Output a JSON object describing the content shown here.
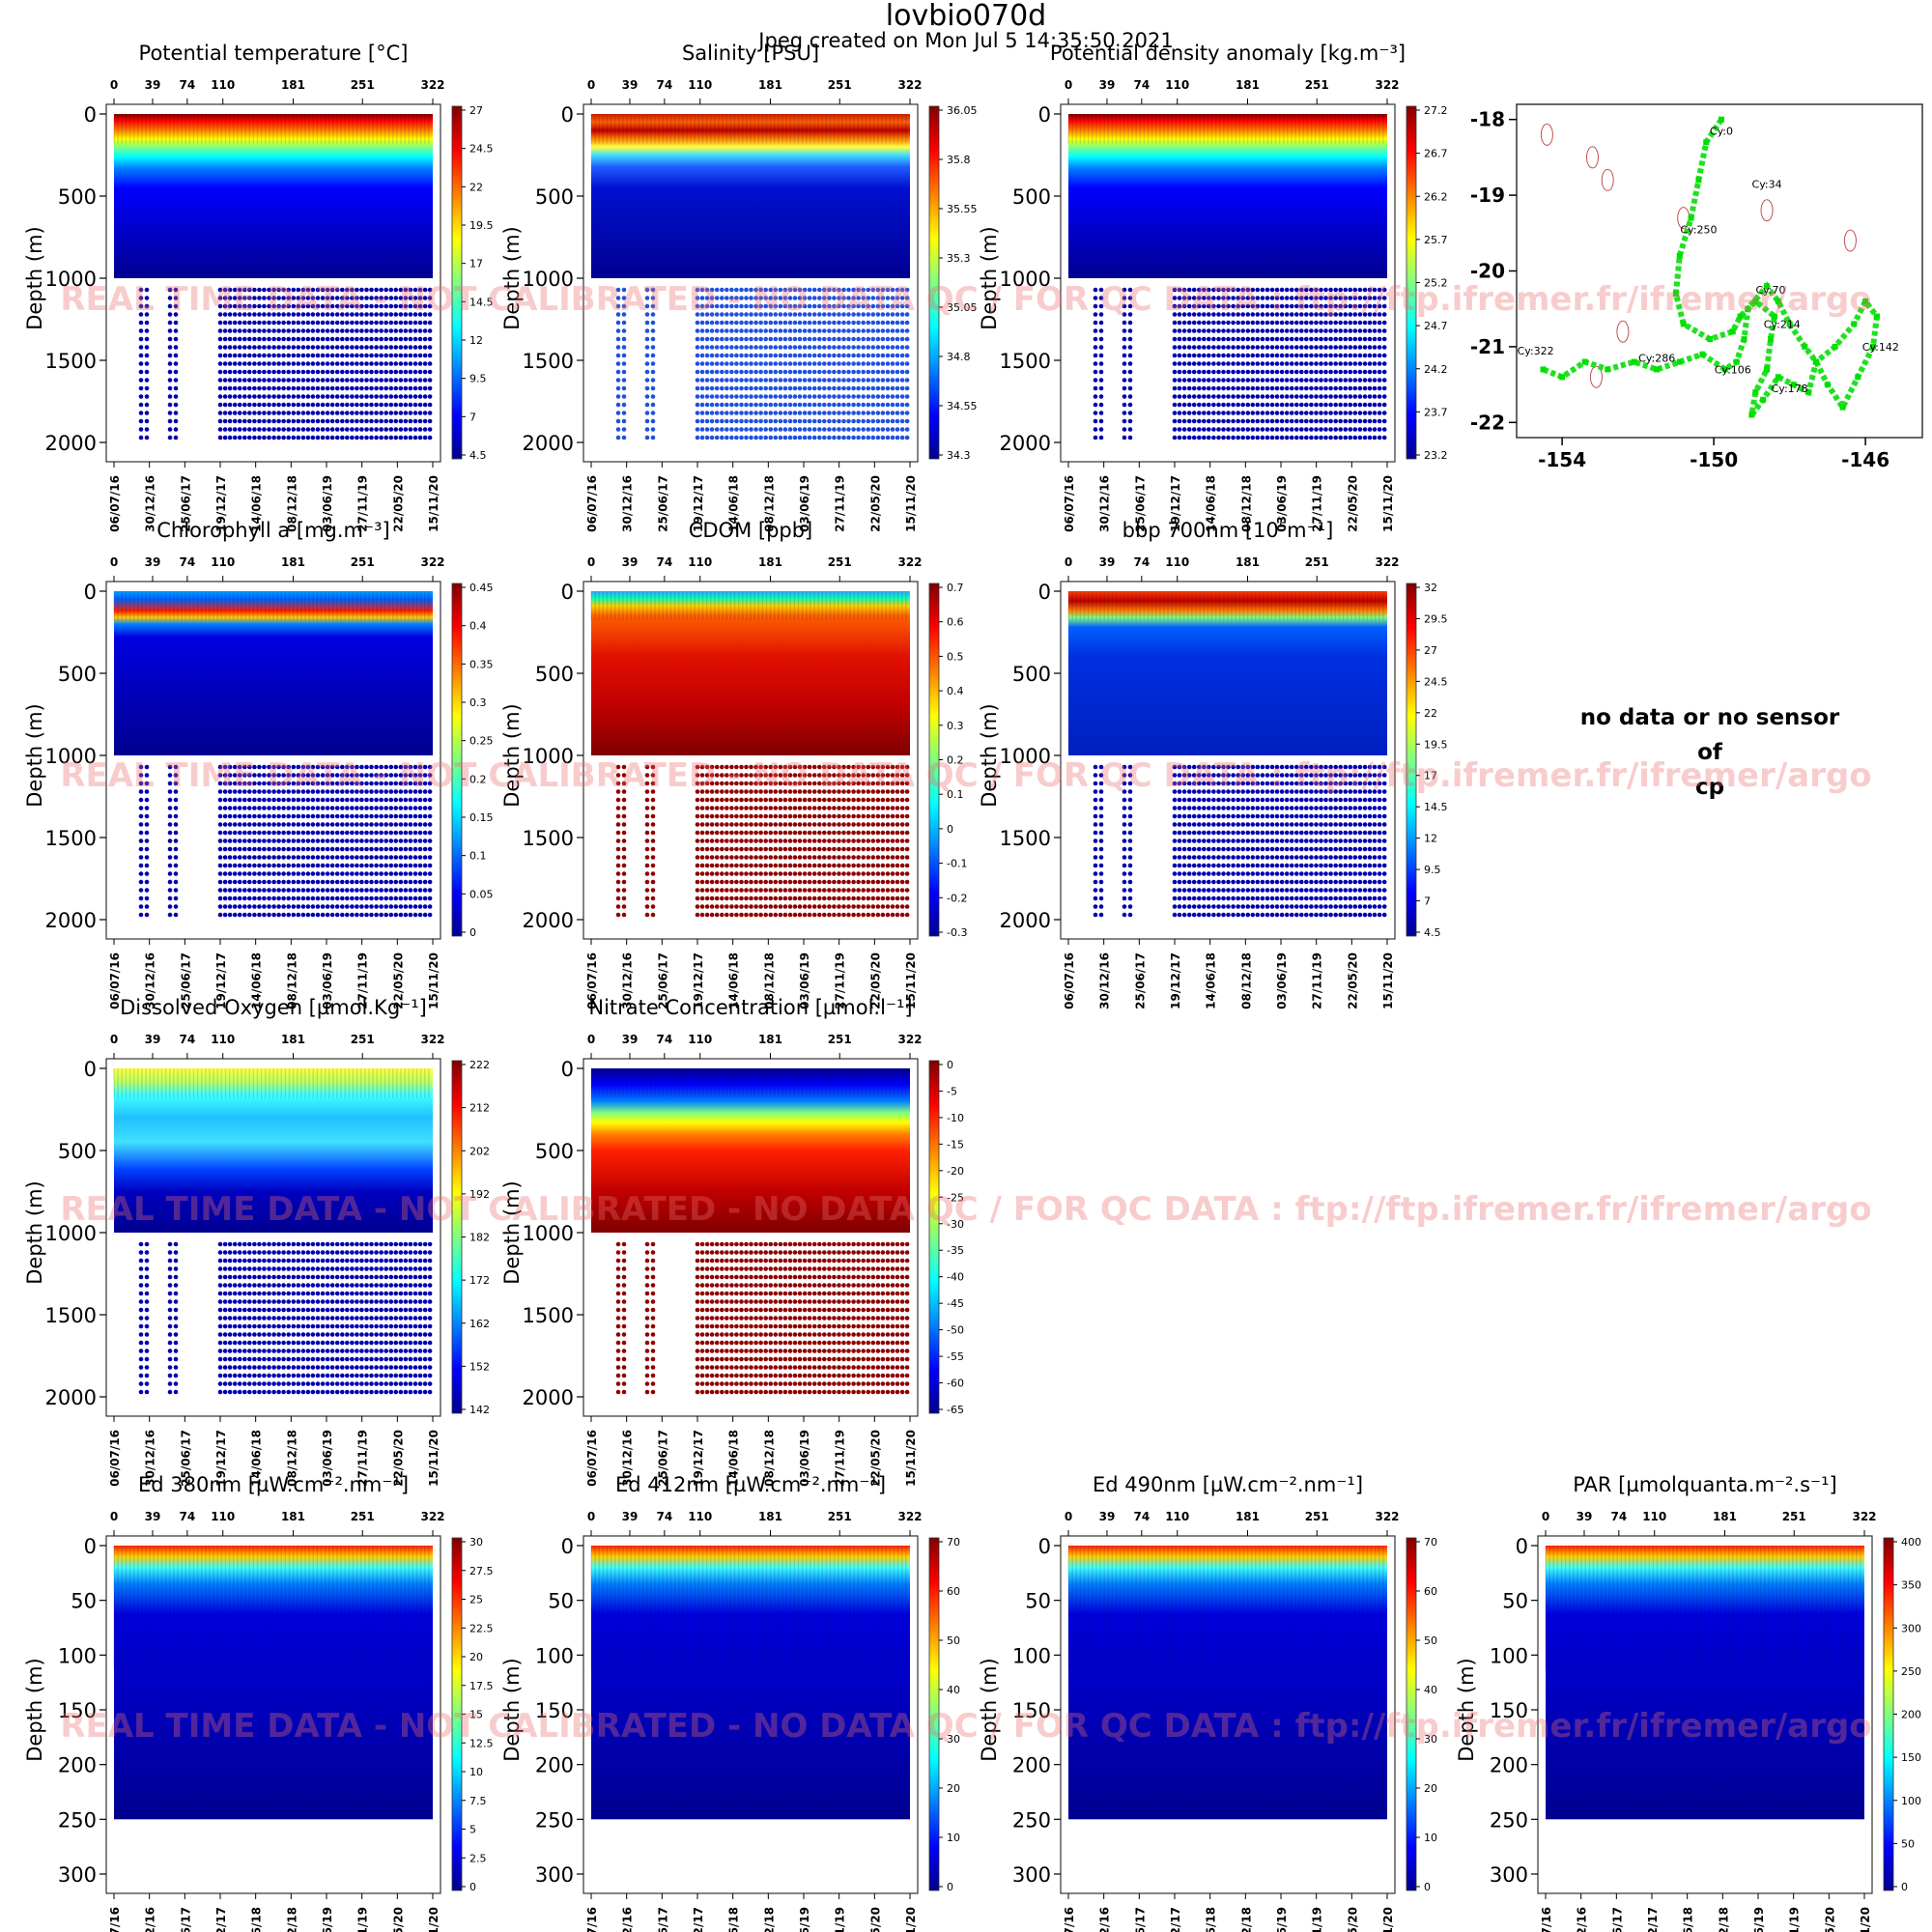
{
  "header": {
    "title": "lovbio070d",
    "subtitle": "Jpeg created on  Mon Jul  5 14:35:50 2021"
  },
  "watermark": "REAL TIME DATA - NOT CALIBRATED - NO DATA QC  /  FOR QC DATA : ftp://ftp.ifremer.fr/ifremer/argo",
  "no_data_panel": {
    "line1": "no data or no sensor",
    "line2": "of",
    "line3": "cp"
  },
  "shared": {
    "cycle_ticks": [
      "0",
      "39",
      "74",
      "110",
      "181",
      "251",
      "322"
    ],
    "cycle_tick_values": [
      0,
      39,
      74,
      110,
      181,
      251,
      322
    ],
    "date_ticks": [
      "06/07/16",
      "30/12/16",
      "25/06/17",
      "19/12/17",
      "14/06/18",
      "08/12/18",
      "03/06/19",
      "27/11/19",
      "22/05/20",
      "15/11/20"
    ],
    "ylabel": "Depth (m)",
    "colors": [
      "#00008f",
      "#0000ff",
      "#0080ff",
      "#00ffff",
      "#80ff80",
      "#ffff00",
      "#ff8000",
      "#ff0000",
      "#800000"
    ]
  },
  "chart_data": [
    {
      "type": "heatmap",
      "title": "Potential temperature [°C]",
      "ylabel": "Depth (m)",
      "ylim": [
        2000,
        0
      ],
      "yticks": [
        "0",
        "500",
        "1000",
        "1500",
        "2000"
      ],
      "colorbar": [
        "27",
        "24.5",
        "22",
        "19.5",
        "17",
        "14.5",
        "12",
        "9.5",
        "7",
        "4.5"
      ],
      "profile": "warm_top",
      "dots": "blue"
    },
    {
      "type": "heatmap",
      "title": "Salinity [PSU]",
      "ylabel": "Depth (m)",
      "ylim": [
        2000,
        0
      ],
      "yticks": [
        "0",
        "500",
        "1000",
        "1500",
        "2000"
      ],
      "colorbar": [
        "36.05",
        "35.8",
        "35.55",
        "35.3",
        "35.05",
        "34.8",
        "34.55",
        "34.3"
      ],
      "profile": "salinity",
      "dots": "lightblue"
    },
    {
      "type": "heatmap",
      "title": "Potential density anomaly [kg.m⁻³]",
      "ylabel": "Depth (m)",
      "ylim": [
        2000,
        0
      ],
      "yticks": [
        "0",
        "500",
        "1000",
        "1500",
        "2000"
      ],
      "colorbar": [
        "27.2",
        "26.7",
        "26.2",
        "25.7",
        "25.2",
        "24.7",
        "24.2",
        "23.7",
        "23.2"
      ],
      "profile": "warm_top",
      "dots": "blue"
    },
    {
      "type": "scatter",
      "title": "",
      "xticks": [
        "-154",
        "-150",
        "-146"
      ],
      "yticks": [
        "-18",
        "-19",
        "-20",
        "-21",
        "-22"
      ],
      "xlim": [
        -155.2,
        -144.5
      ],
      "ylim": [
        -22.2,
        -17.8
      ],
      "labels": [
        "Cy:0",
        "Cy:34",
        "Cy:250",
        "Cy:70",
        "Cy:214",
        "Cy:142",
        "Cy:322",
        "Cy:286",
        "Cy:106",
        "Cy:178"
      ],
      "x": [
        -149.8,
        -150.2,
        -150.4,
        -150.6,
        -150.9,
        -151.0,
        -150.8,
        -150.1,
        -149.5,
        -149.3,
        -148.9,
        -148.4,
        -148.5,
        -148.6,
        -148.9,
        -149.0,
        -148.7,
        -148.3,
        -147.9,
        -147.5,
        -147.3,
        -146.8,
        -146.3,
        -146.0,
        -145.7,
        -145.8,
        -146.2,
        -146.6,
        -147.0,
        -147.3,
        -147.6,
        -148.0,
        -148.3,
        -148.6,
        -149.1,
        -149.2,
        -149.4,
        -149.7,
        -150.3,
        -150.9,
        -151.5,
        -152.1,
        -152.8,
        -153.4,
        -154.0,
        -154.5
      ],
      "y": [
        -18.0,
        -18.3,
        -18.8,
        -19.3,
        -19.8,
        -20.3,
        -20.7,
        -20.9,
        -20.8,
        -20.6,
        -20.4,
        -20.6,
        -20.9,
        -21.3,
        -21.6,
        -21.9,
        -21.7,
        -21.4,
        -21.5,
        -21.6,
        -21.2,
        -21.0,
        -20.7,
        -20.4,
        -20.6,
        -21.0,
        -21.4,
        -21.8,
        -21.5,
        -21.2,
        -21.0,
        -20.7,
        -20.4,
        -20.2,
        -20.5,
        -20.9,
        -21.2,
        -21.3,
        -21.1,
        -21.2,
        -21.3,
        -21.2,
        -21.3,
        -21.2,
        -21.4,
        -21.3
      ]
    },
    {
      "type": "heatmap",
      "title": "Chlorophyll a [mg.m⁻³]",
      "ylabel": "Depth (m)",
      "ylim": [
        2000,
        0
      ],
      "yticks": [
        "0",
        "500",
        "1000",
        "1500",
        "2000"
      ],
      "colorbar": [
        "0.45",
        "0.4",
        "0.35",
        "0.3",
        "0.25",
        "0.2",
        "0.15",
        "0.1",
        "0.05",
        "0"
      ],
      "profile": "chl",
      "dots": "blue"
    },
    {
      "type": "heatmap",
      "title": "CDOM  [ppb]",
      "ylabel": "Depth (m)",
      "ylim": [
        2000,
        0
      ],
      "yticks": [
        "0",
        "500",
        "1000",
        "1500",
        "2000"
      ],
      "colorbar": [
        "0.7",
        "0.6",
        "0.5",
        "0.4",
        "0.3",
        "0.2",
        "0.1",
        "0",
        "-0.1",
        "-0.2",
        "-0.3"
      ],
      "profile": "cdom",
      "dots": "red"
    },
    {
      "type": "heatmap",
      "title": "bbp 700nm [10⁵m⁻¹]",
      "ylabel": "Depth (m)",
      "ylim": [
        2000,
        0
      ],
      "yticks": [
        "0",
        "500",
        "1000",
        "1500",
        "2000"
      ],
      "colorbar": [
        "32",
        "29.5",
        "27",
        "24.5",
        "22",
        "19.5",
        "17",
        "14.5",
        "12",
        "9.5",
        "7",
        "4.5"
      ],
      "profile": "bbp",
      "dots": "blue"
    },
    {
      "type": "heatmap",
      "title": "Dissolved Oxygen [µmol.Kg⁻¹]",
      "ylabel": "Depth (m)",
      "ylim": [
        2000,
        0
      ],
      "yticks": [
        "0",
        "500",
        "1000",
        "1500",
        "2000"
      ],
      "colorbar": [
        "222",
        "212",
        "202",
        "192",
        "182",
        "172",
        "162",
        "152",
        "142"
      ],
      "profile": "oxy",
      "dots": "blue"
    },
    {
      "type": "heatmap",
      "title": "Nitrate Concentration [µmol.l⁻¹]",
      "ylabel": "Depth (m)",
      "ylim": [
        2000,
        0
      ],
      "yticks": [
        "0",
        "500",
        "1000",
        "1500",
        "2000"
      ],
      "colorbar": [
        "0",
        "-5",
        "-10",
        "-15",
        "-20",
        "-25",
        "-30",
        "-35",
        "-40",
        "-45",
        "-50",
        "-55",
        "-60",
        "-65"
      ],
      "profile": "nitrate",
      "dots": "red"
    },
    {
      "type": "heatmap",
      "title": "Ed 380nm [µW.cm⁻².nm⁻¹]",
      "ylabel": "Depth (m)",
      "ylim": [
        300,
        0
      ],
      "yticks": [
        "0",
        "50",
        "100",
        "150",
        "200",
        "250",
        "300"
      ],
      "colorbar": [
        "30",
        "27.5",
        "25",
        "22.5",
        "20",
        "17.5",
        "15",
        "12.5",
        "10",
        "7.5",
        "5",
        "2.5",
        "0"
      ],
      "profile": "light",
      "dots": "none"
    },
    {
      "type": "heatmap",
      "title": "Ed 412nm [µW.cm⁻².nm⁻¹]",
      "ylabel": "Depth (m)",
      "ylim": [
        300,
        0
      ],
      "yticks": [
        "0",
        "50",
        "100",
        "150",
        "200",
        "250",
        "300"
      ],
      "colorbar": [
        "70",
        "60",
        "50",
        "40",
        "30",
        "20",
        "10",
        "0"
      ],
      "profile": "light",
      "dots": "none"
    },
    {
      "type": "heatmap",
      "title": "Ed 490nm [µW.cm⁻².nm⁻¹]",
      "ylabel": "Depth (m)",
      "ylim": [
        300,
        0
      ],
      "yticks": [
        "0",
        "50",
        "100",
        "150",
        "200",
        "250",
        "300"
      ],
      "colorbar": [
        "70",
        "60",
        "50",
        "40",
        "30",
        "20",
        "10",
        "0"
      ],
      "profile": "light",
      "dots": "none"
    },
    {
      "type": "heatmap",
      "title": "PAR [µmolquanta.m⁻².s⁻¹]",
      "ylabel": "Depth (m)",
      "ylim": [
        300,
        0
      ],
      "yticks": [
        "0",
        "50",
        "100",
        "150",
        "200",
        "250",
        "300"
      ],
      "colorbar": [
        "400",
        "350",
        "300",
        "250",
        "200",
        "150",
        "100",
        "50",
        "0"
      ],
      "profile": "light",
      "dots": "none"
    }
  ]
}
